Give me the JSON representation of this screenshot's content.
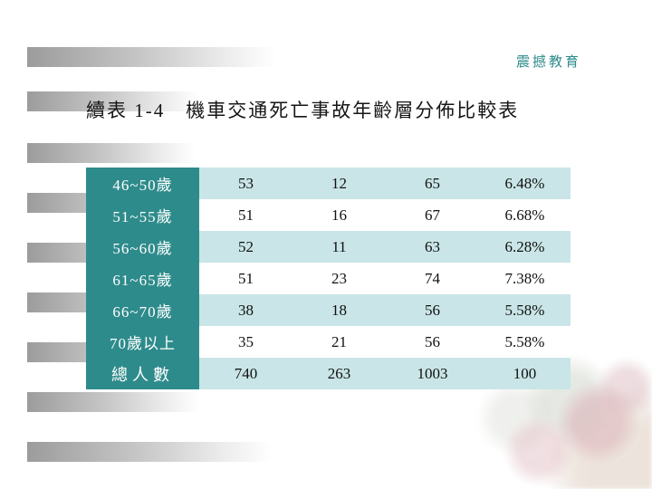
{
  "slide": {
    "corner_label": "震撼教育",
    "title": "續表 1-4　機車交通死亡事故年齡層分佈比較表"
  },
  "table": {
    "rows": [
      {
        "label": "46~50歲",
        "values": [
          "53",
          "12",
          "65",
          "6.48%"
        ]
      },
      {
        "label": "51~55歲",
        "values": [
          "51",
          "16",
          "67",
          "6.68%"
        ]
      },
      {
        "label": "56~60歲",
        "values": [
          "52",
          "11",
          "63",
          "6.28%"
        ]
      },
      {
        "label": "61~65歲",
        "values": [
          "51",
          "23",
          "74",
          "7.38%"
        ]
      },
      {
        "label": "66~70歲",
        "values": [
          "38",
          "18",
          "56",
          "5.58%"
        ]
      },
      {
        "label": "70歲以上",
        "values": [
          "35",
          "21",
          "56",
          "5.58%"
        ]
      },
      {
        "label": "總人數",
        "values": [
          "740",
          "263",
          "1003",
          "100"
        ]
      }
    ]
  },
  "colors": {
    "accent_text": "#2e8b8b",
    "header_column": "#2e8b8b",
    "row_shade": "#c9e5e7"
  }
}
